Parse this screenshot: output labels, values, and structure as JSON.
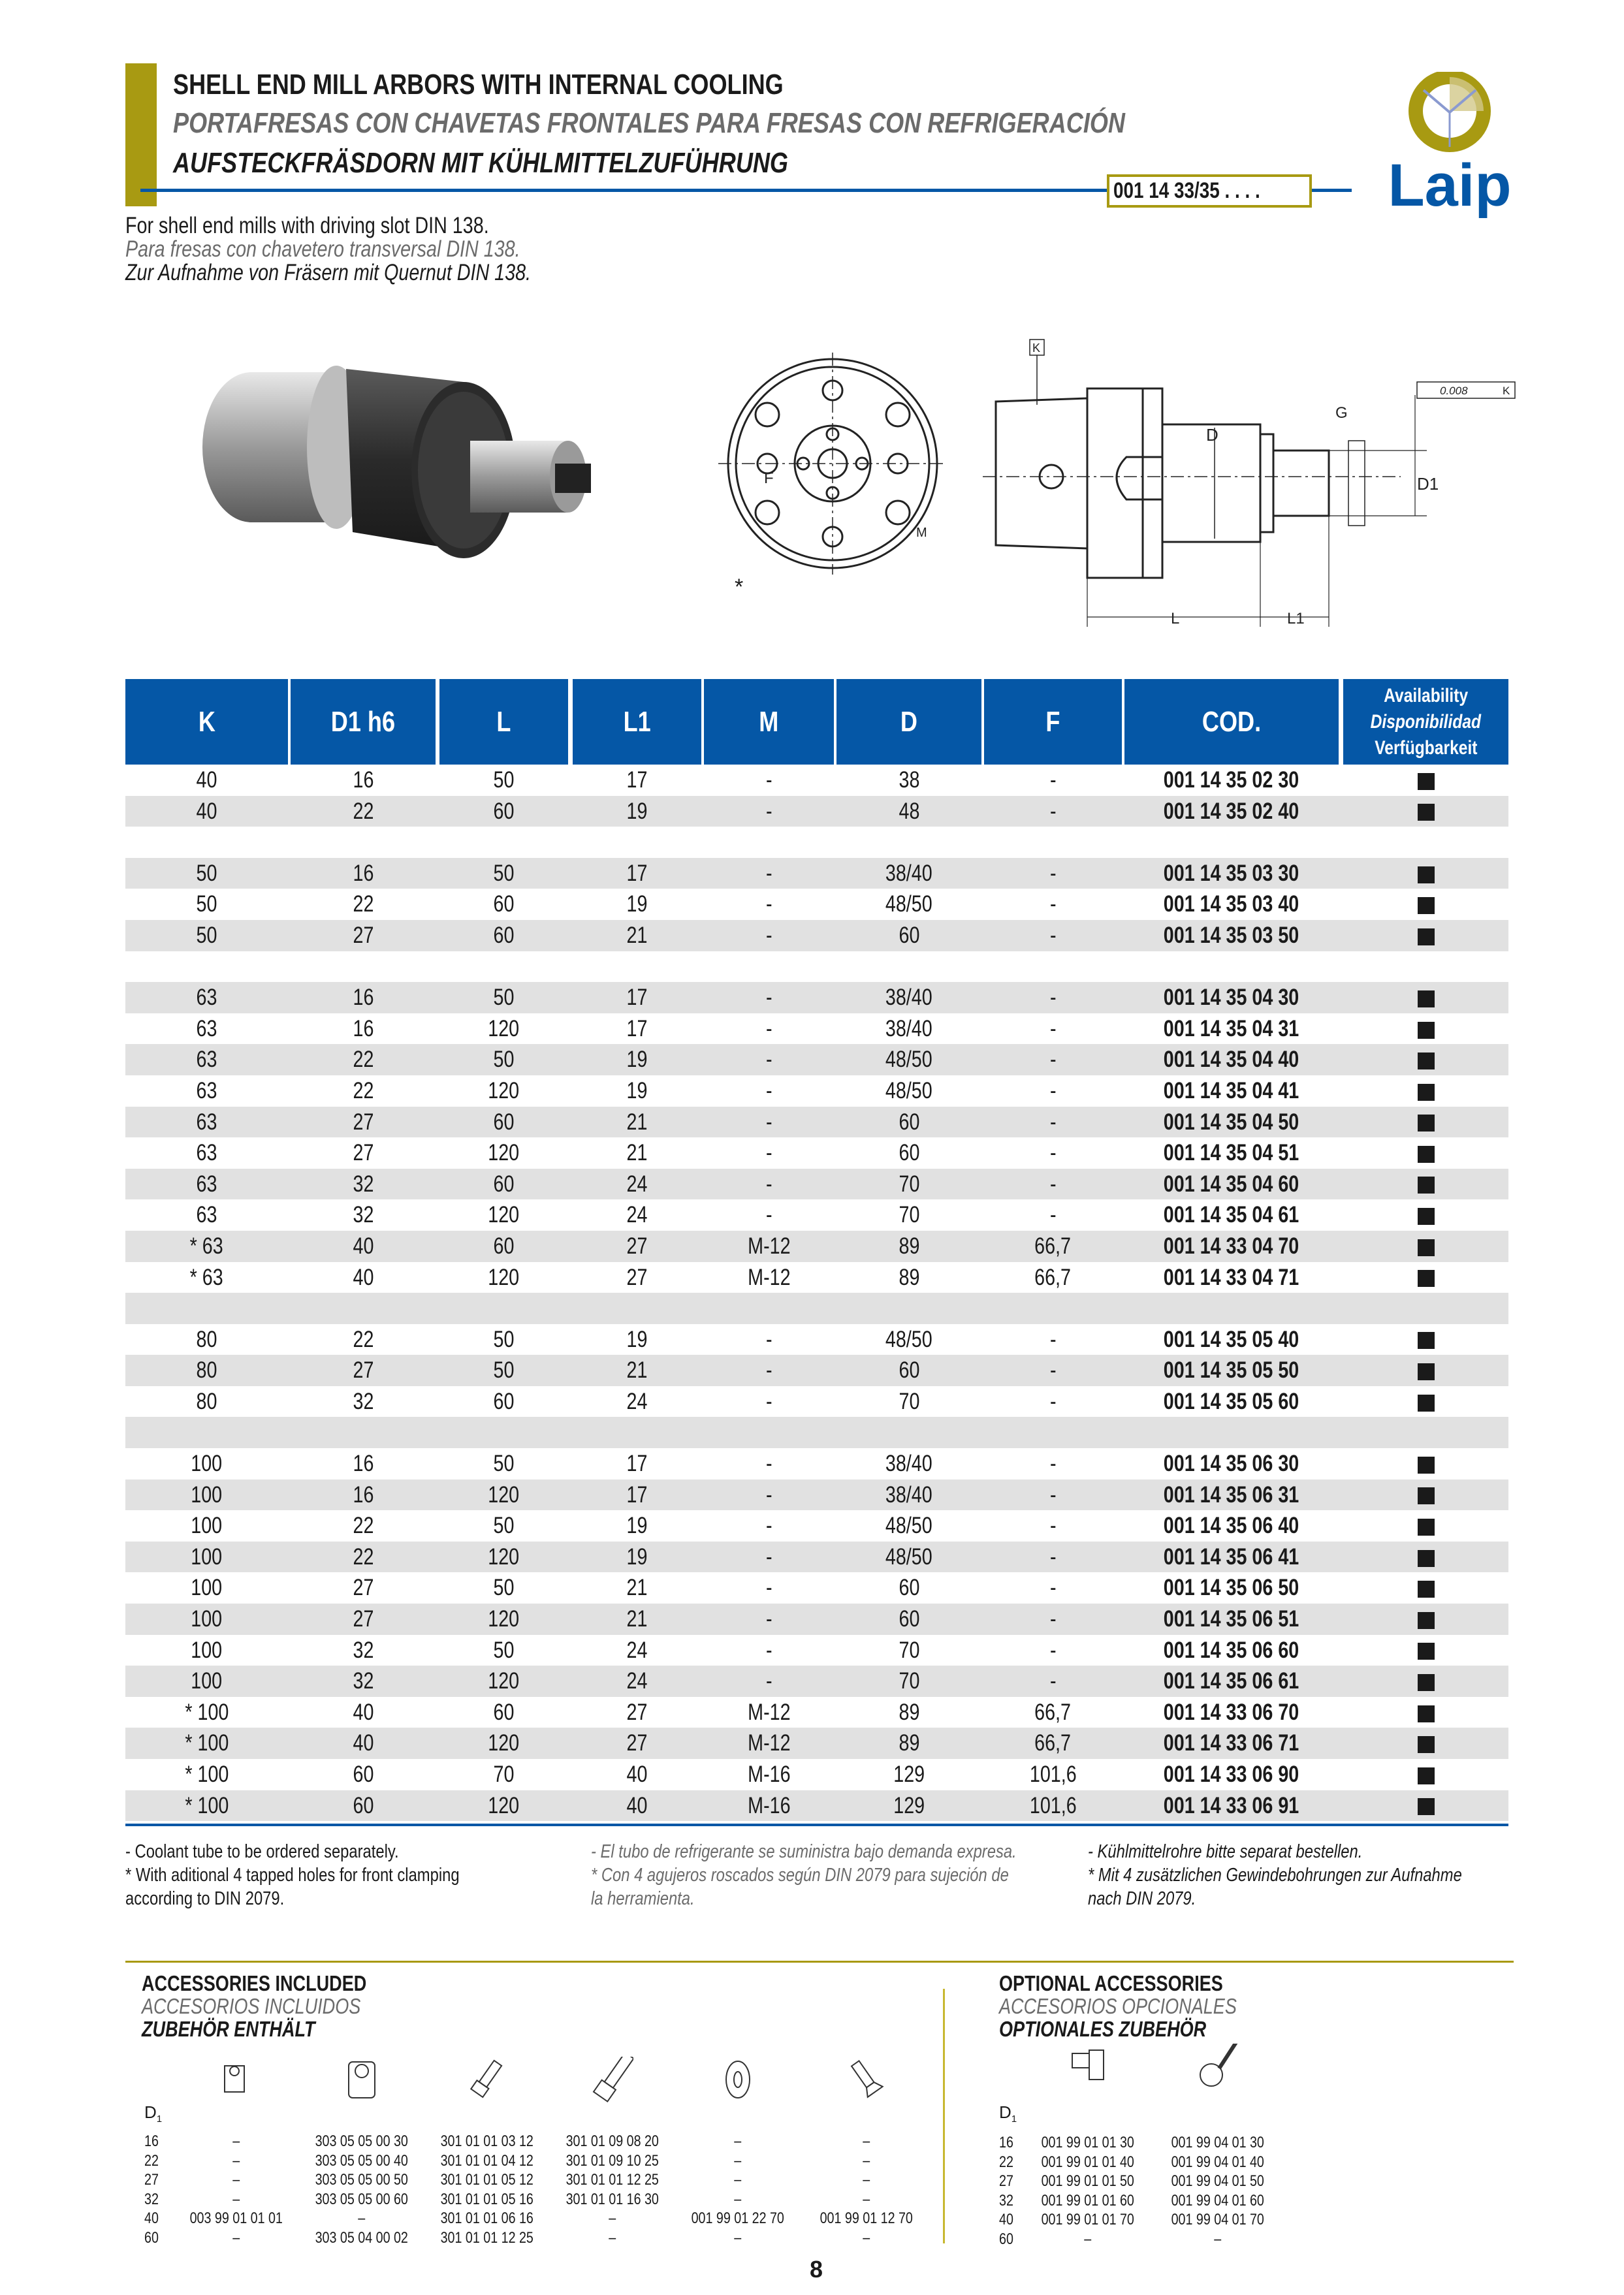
{
  "header": {
    "title_en": "SHELL END MILL ARBORS WITH INTERNAL COOLING",
    "title_es": "PORTAFRESAS CON CHAVETAS FRONTALES PARA FRESAS CON REFRIGERACIÓN",
    "title_de": "AUFSTECKFRÄSDORN MIT KÜHLMITTELZUFÜHRUNG",
    "code": "001 14 33/35 . . . .",
    "logo_text": "Laip",
    "accent_color": "#a89a12",
    "brand_color": "#0557a6"
  },
  "intro": {
    "en": "For shell end mills with driving slot DIN 138.",
    "es": "Para fresas con chavetero transversal DIN 138.",
    "de": "Zur Aufnahme von Fräsern mit Quernut DIN 138."
  },
  "drawing": {
    "star": "*",
    "front_labels": {
      "f": "F",
      "m": "M"
    },
    "side_labels": {
      "k": "K",
      "d": "D",
      "g": "G",
      "d1": "D1",
      "l": "L",
      "l1": "L1",
      "tolerance": "0.008",
      "tolerance_ref": "K"
    }
  },
  "table": {
    "headers": [
      "K",
      "D1 h6",
      "L",
      "L1",
      "M",
      "D",
      "F",
      "COD."
    ],
    "availability_header": {
      "en": "Availability",
      "es": "Disponibilidad",
      "de": "Verfügbarkeit"
    },
    "rows": [
      [
        "40",
        "16",
        "50",
        "17",
        "-",
        "38",
        "-",
        "001 14 35 02 30",
        true
      ],
      [
        "40",
        "22",
        "60",
        "19",
        "-",
        "48",
        "-",
        "001 14 35 02 40",
        true
      ],
      null,
      [
        "50",
        "16",
        "50",
        "17",
        "-",
        "38/40",
        "-",
        "001 14 35 03 30",
        true
      ],
      [
        "50",
        "22",
        "60",
        "19",
        "-",
        "48/50",
        "-",
        "001 14 35 03 40",
        true
      ],
      [
        "50",
        "27",
        "60",
        "21",
        "-",
        "60",
        "-",
        "001 14 35 03 50",
        true
      ],
      null,
      [
        "63",
        "16",
        "50",
        "17",
        "-",
        "38/40",
        "-",
        "001 14 35 04 30",
        true
      ],
      [
        "63",
        "16",
        "120",
        "17",
        "-",
        "38/40",
        "-",
        "001 14 35 04 31",
        true
      ],
      [
        "63",
        "22",
        "50",
        "19",
        "-",
        "48/50",
        "-",
        "001 14 35 04 40",
        true
      ],
      [
        "63",
        "22",
        "120",
        "19",
        "-",
        "48/50",
        "-",
        "001 14 35 04 41",
        true
      ],
      [
        "63",
        "27",
        "60",
        "21",
        "-",
        "60",
        "-",
        "001 14 35 04 50",
        true
      ],
      [
        "63",
        "27",
        "120",
        "21",
        "-",
        "60",
        "-",
        "001 14 35 04 51",
        true
      ],
      [
        "63",
        "32",
        "60",
        "24",
        "-",
        "70",
        "-",
        "001 14 35 04 60",
        true
      ],
      [
        "63",
        "32",
        "120",
        "24",
        "-",
        "70",
        "-",
        "001 14 35 04 61",
        true
      ],
      [
        "* 63",
        "40",
        "60",
        "27",
        "M-12",
        "89",
        "66,7",
        "001 14 33 04 70",
        true
      ],
      [
        "* 63",
        "40",
        "120",
        "27",
        "M-12",
        "89",
        "66,7",
        "001 14 33 04 71",
        true
      ],
      null,
      [
        "80",
        "22",
        "50",
        "19",
        "-",
        "48/50",
        "-",
        "001 14 35 05 40",
        true
      ],
      [
        "80",
        "27",
        "50",
        "21",
        "-",
        "60",
        "-",
        "001 14 35 05 50",
        true
      ],
      [
        "80",
        "32",
        "60",
        "24",
        "-",
        "70",
        "-",
        "001 14 35 05 60",
        true
      ],
      null,
      [
        "100",
        "16",
        "50",
        "17",
        "-",
        "38/40",
        "-",
        "001 14 35 06 30",
        true
      ],
      [
        "100",
        "16",
        "120",
        "17",
        "-",
        "38/40",
        "-",
        "001 14 35 06 31",
        true
      ],
      [
        "100",
        "22",
        "50",
        "19",
        "-",
        "48/50",
        "-",
        "001 14 35 06 40",
        true
      ],
      [
        "100",
        "22",
        "120",
        "19",
        "-",
        "48/50",
        "-",
        "001 14 35 06 41",
        true
      ],
      [
        "100",
        "27",
        "50",
        "21",
        "-",
        "60",
        "-",
        "001 14 35 06 50",
        true
      ],
      [
        "100",
        "27",
        "120",
        "21",
        "-",
        "60",
        "-",
        "001 14 35 06 51",
        true
      ],
      [
        "100",
        "32",
        "50",
        "24",
        "-",
        "70",
        "-",
        "001 14 35 06 60",
        true
      ],
      [
        "100",
        "32",
        "120",
        "24",
        "-",
        "70",
        "-",
        "001 14 35 06 61",
        true
      ],
      [
        "* 100",
        "40",
        "60",
        "27",
        "M-12",
        "89",
        "66,7",
        "001 14 33 06 70",
        true
      ],
      [
        "* 100",
        "40",
        "120",
        "27",
        "M-12",
        "89",
        "66,7",
        "001 14 33 06 71",
        true
      ],
      [
        "* 100",
        "60",
        "70",
        "40",
        "M-16",
        "129",
        "101,6",
        "001 14 33 06 90",
        true
      ],
      [
        "* 100",
        "60",
        "120",
        "40",
        "M-16",
        "129",
        "101,6",
        "001 14 33 06 91",
        true
      ]
    ]
  },
  "footnotes": {
    "en": [
      "- Coolant tube to be ordered separately.",
      "* With aditional 4 tapped holes for front clamping",
      "according to DIN 2079."
    ],
    "es": [
      "- El tubo de refrigerante se suministra bajo demanda expresa.",
      "* Con 4 agujeros roscados según DIN 2079 para sujeción de",
      "la herramienta."
    ],
    "de": [
      "- Kühlmittelrohre bitte separat bestellen.",
      "* Mit 4 zusätzlichen Gewindebohrungen zur Aufnahme",
      "nach DIN 2079."
    ]
  },
  "accessories_included": {
    "title_en": "ACCESSORIES INCLUDED",
    "title_es": "ACCESORIOS INCLUIDOS",
    "title_de": "ZUBEHÖR ENTHÄLT",
    "d1_label": "D1",
    "d1": [
      "16",
      "22",
      "27",
      "32",
      "40",
      "60"
    ],
    "columns": [
      {
        "icon": "drive-key-icon",
        "values": [
          "–",
          "–",
          "–",
          "–",
          "003 99 01 01 01",
          "–"
        ]
      },
      {
        "icon": "key-block-icon",
        "values": [
          "303 05 05 00 30",
          "303 05 05 00 40",
          "303 05 05 00 50",
          "303 05 05 00 60",
          "–",
          "303 05 04 00 02"
        ]
      },
      {
        "icon": "short-screw-icon",
        "values": [
          "301 01 01 03 12",
          "301 01 01 04 12",
          "301 01 01 05 12",
          "301 01 01 05 16",
          "301 01 01 06 16",
          "301 01 01 12 25"
        ]
      },
      {
        "icon": "long-screw-icon",
        "values": [
          "301 01 09 08 20",
          "301 01 09 10 25",
          "301 01 01 12 25",
          "301 01 01 16 30",
          "–",
          "–"
        ]
      },
      {
        "icon": "washer-icon",
        "values": [
          "–",
          "–",
          "–",
          "–",
          "001 99 01 22 70",
          "–"
        ]
      },
      {
        "icon": "countersunk-screw-icon",
        "values": [
          "–",
          "–",
          "–",
          "–",
          "001 99 01 12 70",
          "–"
        ]
      }
    ]
  },
  "accessories_optional": {
    "title_en": "OPTIONAL ACCESSORIES",
    "title_es": "ACCESORIOS OPCIONALES",
    "title_de": "OPTIONALES ZUBEHÖR",
    "d1_label": "D1",
    "d1": [
      "16",
      "22",
      "27",
      "32",
      "40",
      "60"
    ],
    "columns": [
      {
        "icon": "arbor-screw-icon",
        "values": [
          "001 99 01 01 30",
          "001 99 01 01 40",
          "001 99 01 01 50",
          "001 99 01 01 60",
          "001 99 01 01 70",
          "–"
        ]
      },
      {
        "icon": "wrench-icon",
        "values": [
          "001 99 04 01 30",
          "001 99 04 01 40",
          "001 99 04 01 50",
          "001 99 04 01 60",
          "001 99 04 01 70",
          "–"
        ]
      }
    ]
  },
  "page_number": "8"
}
